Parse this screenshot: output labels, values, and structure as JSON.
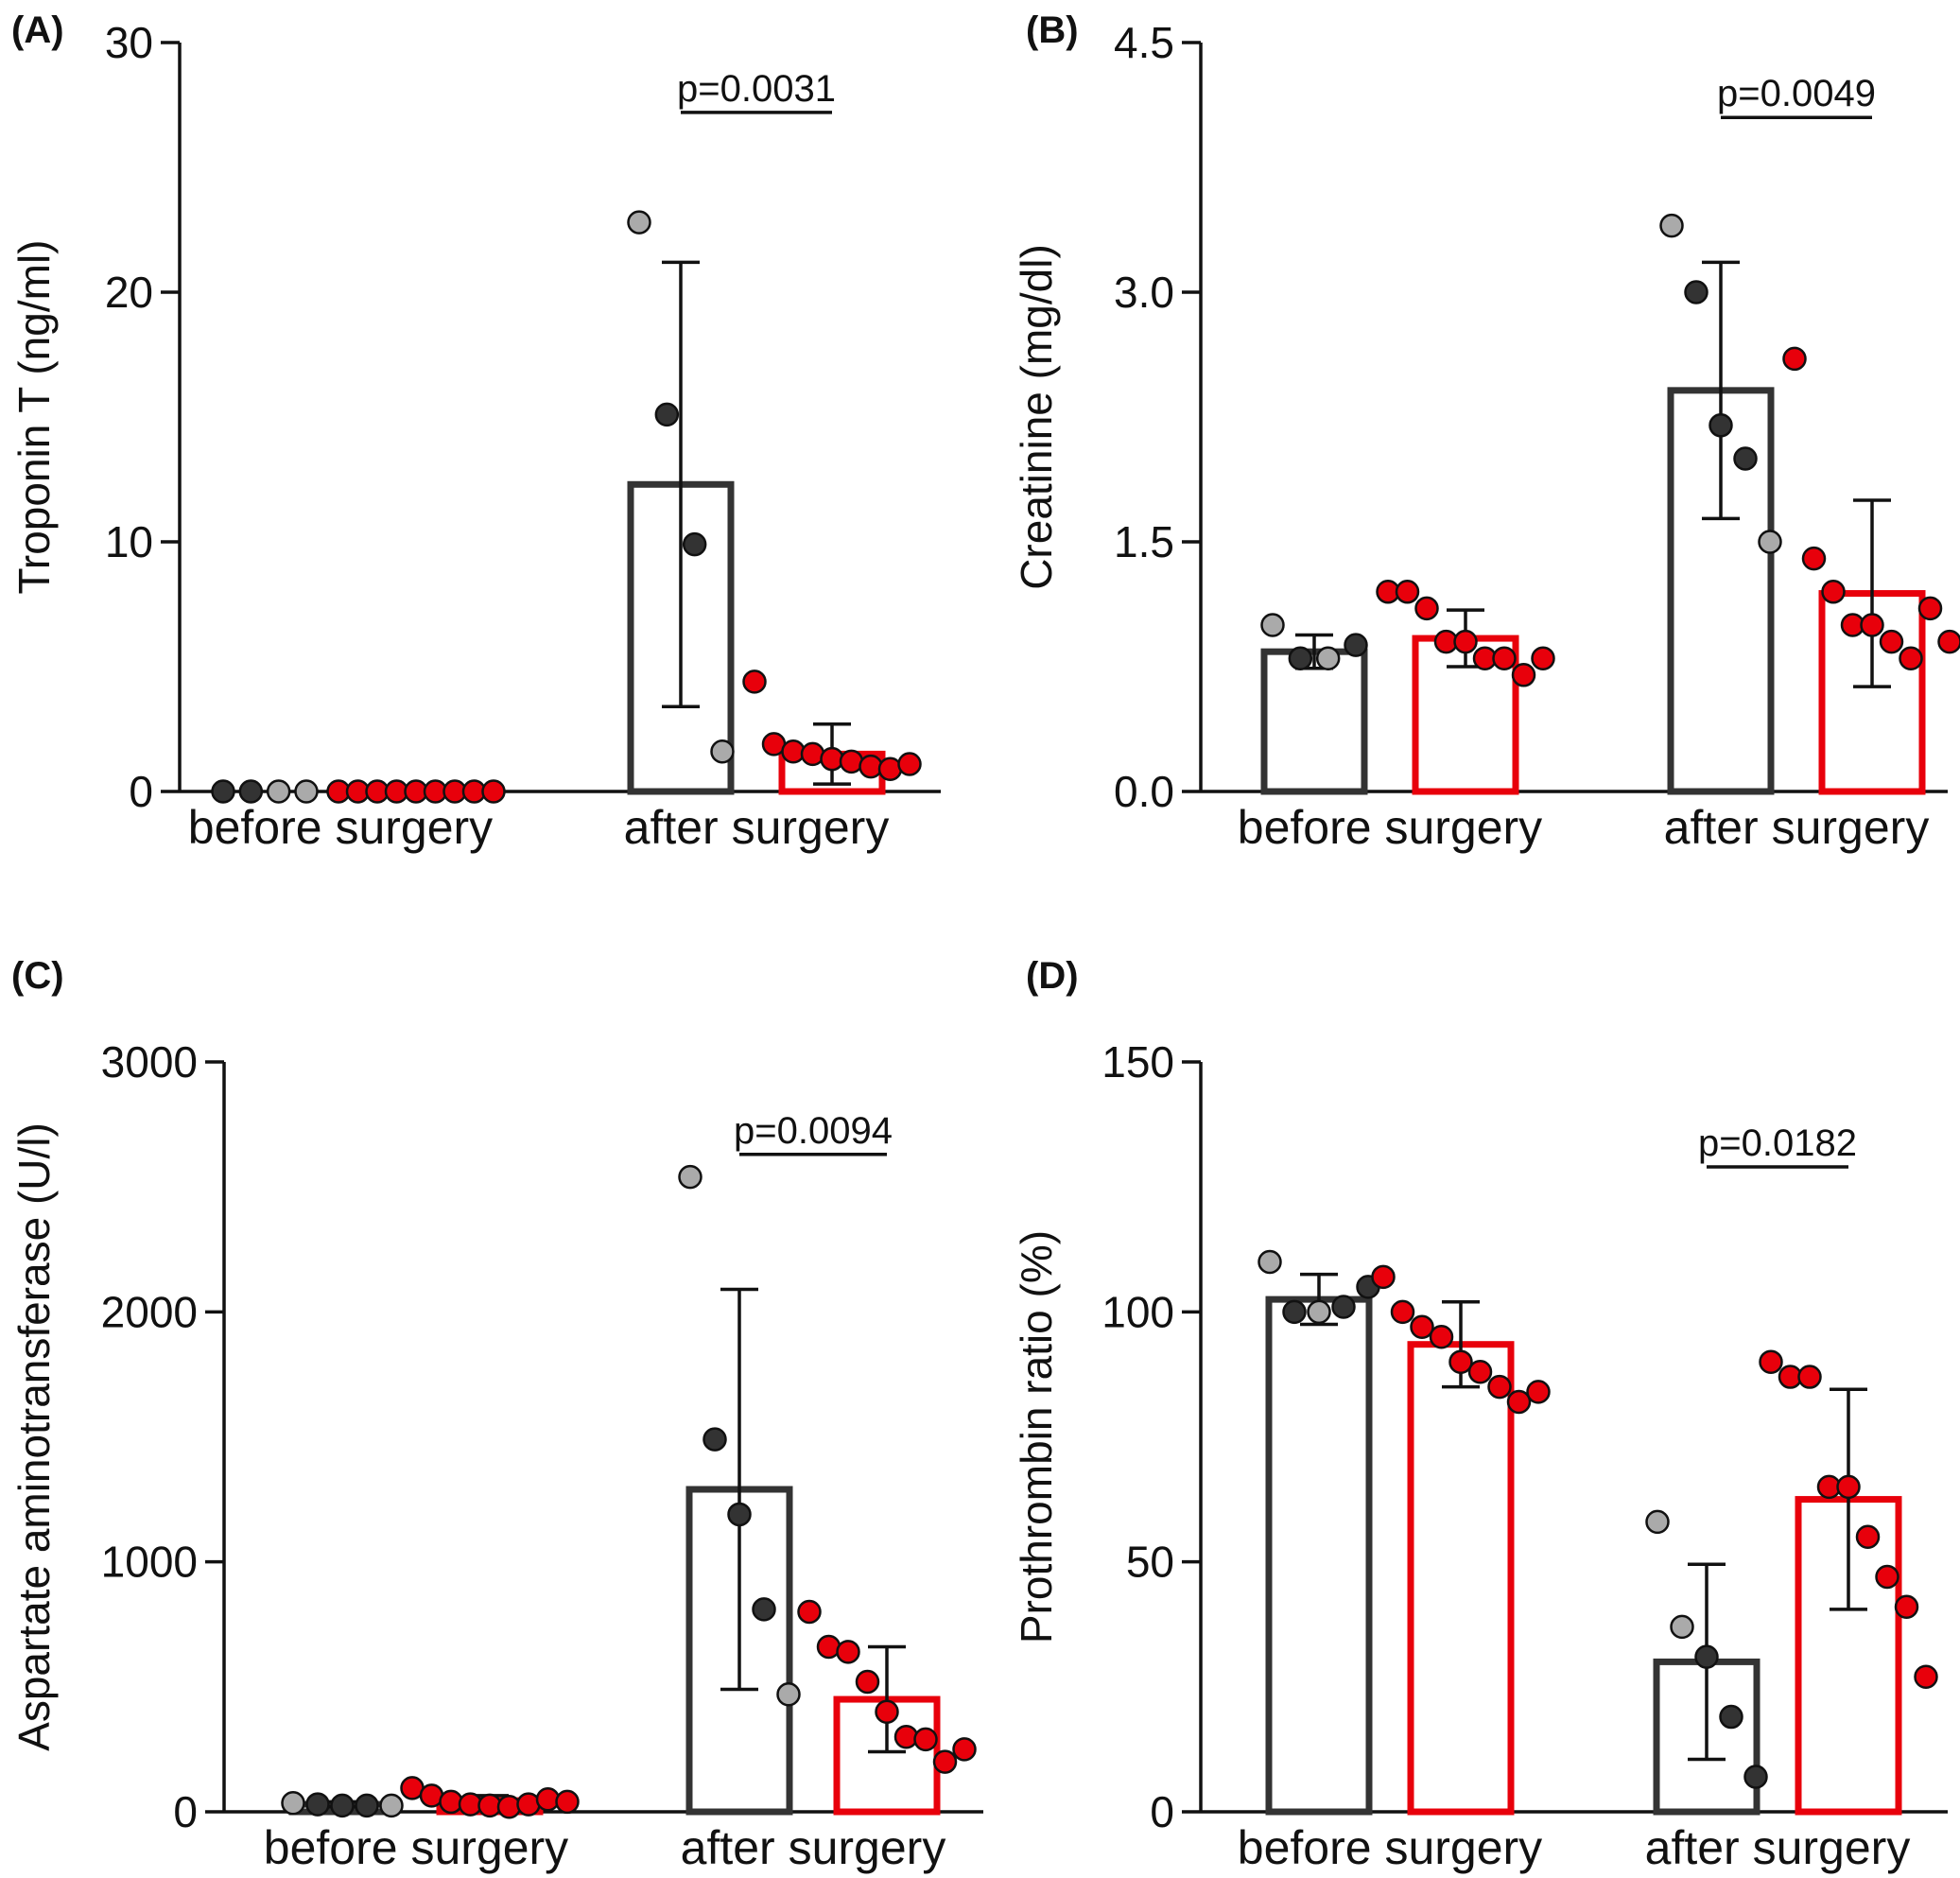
{
  "colors": {
    "control": "#333333",
    "treated": "#e8000b",
    "point_dark": "#333333",
    "point_light": "#aaaaaa",
    "point_red": "#e8000b"
  },
  "chart_data": [
    {
      "id": "A",
      "type": "bar",
      "panel_label": "(A)",
      "ylabel": "Troponin T (ng/ml)",
      "ylim": [
        0,
        30
      ],
      "yticks": [
        "0",
        "10",
        "20",
        "30"
      ],
      "ytick_values": [
        0,
        10,
        20,
        30
      ],
      "categories": [
        "before surgery",
        "after surgery"
      ],
      "series": [
        {
          "group": "control",
          "values": [
            0,
            12.3
          ],
          "sd": [
            0,
            8.9
          ],
          "points": [
            [
              {
                "v": 0,
                "c": "dark"
              },
              {
                "v": 0,
                "c": "dark"
              },
              {
                "v": 0,
                "c": "light"
              },
              {
                "v": 0,
                "c": "light"
              }
            ],
            [
              {
                "v": 22.8,
                "c": "light"
              },
              {
                "v": 15.1,
                "c": "dark"
              },
              {
                "v": 9.9,
                "c": "dark"
              },
              {
                "v": 1.6,
                "c": "light"
              }
            ]
          ]
        },
        {
          "group": "treated",
          "values": [
            0,
            1.5
          ],
          "sd": [
            0,
            1.2
          ],
          "points": [
            [
              {
                "v": 0,
                "c": "red"
              },
              {
                "v": 0,
                "c": "red"
              },
              {
                "v": 0,
                "c": "red"
              },
              {
                "v": 0,
                "c": "red"
              },
              {
                "v": 0,
                "c": "red"
              },
              {
                "v": 0,
                "c": "red"
              },
              {
                "v": 0,
                "c": "red"
              },
              {
                "v": 0,
                "c": "red"
              },
              {
                "v": 0,
                "c": "red"
              }
            ],
            [
              {
                "v": 4.4,
                "c": "red"
              },
              {
                "v": 1.9,
                "c": "red"
              },
              {
                "v": 1.6,
                "c": "red"
              },
              {
                "v": 1.5,
                "c": "red"
              },
              {
                "v": 1.3,
                "c": "red"
              },
              {
                "v": 1.2,
                "c": "red"
              },
              {
                "v": 1.0,
                "c": "red"
              },
              {
                "v": 0.9,
                "c": "red"
              },
              {
                "v": 1.1,
                "c": "red"
              }
            ]
          ]
        }
      ],
      "annotation": {
        "text": "p=0.0031",
        "category": 1,
        "value": 27.2
      }
    },
    {
      "id": "B",
      "type": "bar",
      "panel_label": "(B)",
      "ylabel": "Creatinine (mg/dl)",
      "ylim": [
        0,
        4.5
      ],
      "yticks": [
        "0.0",
        "1.5",
        "3.0",
        "4.5"
      ],
      "ytick_values": [
        0,
        1.5,
        3.0,
        4.5
      ],
      "categories": [
        "before surgery",
        "after surgery"
      ],
      "series": [
        {
          "group": "control",
          "values": [
            0.84,
            2.41
          ],
          "sd": [
            0.1,
            0.77
          ],
          "points": [
            [
              {
                "v": 1.0,
                "c": "light"
              },
              {
                "v": 0.8,
                "c": "dark"
              },
              {
                "v": 0.8,
                "c": "light"
              },
              {
                "v": 0.88,
                "c": "dark"
              }
            ],
            [
              {
                "v": 3.4,
                "c": "light"
              },
              {
                "v": 3.0,
                "c": "dark"
              },
              {
                "v": 2.2,
                "c": "dark"
              },
              {
                "v": 2.0,
                "c": "dark"
              },
              {
                "v": 1.5,
                "c": "light"
              }
            ]
          ]
        },
        {
          "group": "treated",
          "values": [
            0.92,
            1.19
          ],
          "sd": [
            0.17,
            0.56
          ],
          "points": [
            [
              {
                "v": 1.2,
                "c": "red"
              },
              {
                "v": 1.2,
                "c": "red"
              },
              {
                "v": 1.1,
                "c": "red"
              },
              {
                "v": 0.9,
                "c": "red"
              },
              {
                "v": 0.9,
                "c": "red"
              },
              {
                "v": 0.8,
                "c": "red"
              },
              {
                "v": 0.8,
                "c": "red"
              },
              {
                "v": 0.7,
                "c": "red"
              },
              {
                "v": 0.8,
                "c": "red"
              }
            ],
            [
              {
                "v": 2.6,
                "c": "red"
              },
              {
                "v": 1.4,
                "c": "red"
              },
              {
                "v": 1.2,
                "c": "red"
              },
              {
                "v": 1.0,
                "c": "red"
              },
              {
                "v": 1.0,
                "c": "red"
              },
              {
                "v": 0.9,
                "c": "red"
              },
              {
                "v": 0.8,
                "c": "red"
              },
              {
                "v": 1.1,
                "c": "red"
              },
              {
                "v": 0.9,
                "c": "red"
              }
            ]
          ]
        }
      ],
      "annotation": {
        "text": "p=0.0049",
        "category": 1,
        "value": 4.05
      }
    },
    {
      "id": "C",
      "type": "bar",
      "panel_label": "(C)",
      "ylabel": "Aspartate aminotransferase (U/l)",
      "ylim": [
        0,
        3000
      ],
      "yticks": [
        "0",
        "1000",
        "2000",
        "3000"
      ],
      "ytick_values": [
        0,
        1000,
        2000,
        3000
      ],
      "categories": [
        "before surgery",
        "after surgery"
      ],
      "series": [
        {
          "group": "control",
          "values": [
            30,
            1290
          ],
          "sd": [
            10,
            800
          ],
          "points": [
            [
              {
                "v": 35,
                "c": "light"
              },
              {
                "v": 30,
                "c": "dark"
              },
              {
                "v": 25,
                "c": "dark"
              },
              {
                "v": 25,
                "c": "dark"
              },
              {
                "v": 25,
                "c": "light"
              }
            ],
            [
              {
                "v": 2540,
                "c": "light"
              },
              {
                "v": 1490,
                "c": "dark"
              },
              {
                "v": 1190,
                "c": "dark"
              },
              {
                "v": 810,
                "c": "dark"
              },
              {
                "v": 470,
                "c": "light"
              }
            ]
          ]
        },
        {
          "group": "treated",
          "values": [
            45,
            450
          ],
          "sd": [
            20,
            210
          ],
          "points": [
            [
              {
                "v": 95,
                "c": "red"
              },
              {
                "v": 65,
                "c": "red"
              },
              {
                "v": 40,
                "c": "red"
              },
              {
                "v": 30,
                "c": "red"
              },
              {
                "v": 25,
                "c": "red"
              },
              {
                "v": 20,
                "c": "red"
              },
              {
                "v": 30,
                "c": "red"
              },
              {
                "v": 50,
                "c": "red"
              },
              {
                "v": 40,
                "c": "red"
              }
            ],
            [
              {
                "v": 800,
                "c": "red"
              },
              {
                "v": 660,
                "c": "red"
              },
              {
                "v": 640,
                "c": "red"
              },
              {
                "v": 520,
                "c": "red"
              },
              {
                "v": 400,
                "c": "red"
              },
              {
                "v": 300,
                "c": "red"
              },
              {
                "v": 290,
                "c": "red"
              },
              {
                "v": 200,
                "c": "red"
              },
              {
                "v": 250,
                "c": "red"
              }
            ]
          ]
        }
      ],
      "annotation": {
        "text": "p=0.0094",
        "category": 1,
        "value": 2630
      }
    },
    {
      "id": "D",
      "type": "bar",
      "panel_label": "(D)",
      "ylabel": "Prothrombin ratio (%)",
      "ylim": [
        0,
        150
      ],
      "yticks": [
        "0",
        "50",
        "100",
        "150"
      ],
      "ytick_values": [
        0,
        50,
        100,
        150
      ],
      "categories": [
        "before surgery",
        "after surgery"
      ],
      "series": [
        {
          "group": "control",
          "values": [
            102.5,
            30
          ],
          "sd": [
            5,
            19.5
          ],
          "points": [
            [
              {
                "v": 110,
                "c": "light"
              },
              {
                "v": 100,
                "c": "dark"
              },
              {
                "v": 100,
                "c": "light"
              },
              {
                "v": 101,
                "c": "dark"
              },
              {
                "v": 105,
                "c": "dark"
              }
            ],
            [
              {
                "v": 58,
                "c": "light"
              },
              {
                "v": 37,
                "c": "light"
              },
              {
                "v": 31,
                "c": "dark"
              },
              {
                "v": 19,
                "c": "dark"
              },
              {
                "v": 7,
                "c": "dark"
              }
            ]
          ]
        },
        {
          "group": "treated",
          "values": [
            93.5,
            62.5
          ],
          "sd": [
            8.5,
            22
          ],
          "points": [
            [
              {
                "v": 107,
                "c": "red"
              },
              {
                "v": 100,
                "c": "red"
              },
              {
                "v": 97,
                "c": "red"
              },
              {
                "v": 95,
                "c": "red"
              },
              {
                "v": 90,
                "c": "red"
              },
              {
                "v": 88,
                "c": "red"
              },
              {
                "v": 85,
                "c": "red"
              },
              {
                "v": 82,
                "c": "red"
              },
              {
                "v": 84,
                "c": "red"
              }
            ],
            [
              {
                "v": 90,
                "c": "red"
              },
              {
                "v": 87,
                "c": "red"
              },
              {
                "v": 87,
                "c": "red"
              },
              {
                "v": 65,
                "c": "red"
              },
              {
                "v": 65,
                "c": "red"
              },
              {
                "v": 55,
                "c": "red"
              },
              {
                "v": 47,
                "c": "red"
              },
              {
                "v": 41,
                "c": "red"
              },
              {
                "v": 27,
                "c": "red"
              }
            ]
          ]
        }
      ],
      "annotation": {
        "text": "p=0.0182",
        "category": 1,
        "value": 129
      }
    }
  ]
}
